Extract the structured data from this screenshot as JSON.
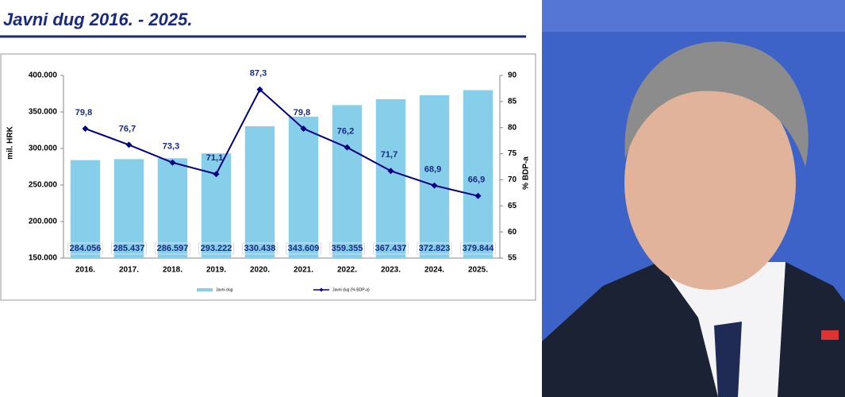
{
  "chart_data": {
    "type": "bar",
    "title": "Javni dug 2016. - 2025.",
    "ylabel": "mil. HRK",
    "y2label": "% BDP-a",
    "categories": [
      "2016.",
      "2017.",
      "2018.",
      "2019.",
      "2020.",
      "2021.",
      "2022.",
      "2023.",
      "2024.",
      "2025."
    ],
    "series": [
      {
        "name": "Javni dug",
        "color": "#87ceeb",
        "values": [
          284056,
          285437,
          286597,
          293222,
          330438,
          343609,
          359355,
          367437,
          372823,
          379844
        ],
        "value_labels": [
          "284.056",
          "285.437",
          "286.597",
          "293.222",
          "330.438",
          "343.609",
          "359.355",
          "367.437",
          "372.823",
          "379.844"
        ]
      },
      {
        "name": "Javni dug (% BDP-a)",
        "color": "#000080",
        "axis": "y2",
        "values": [
          79.8,
          76.7,
          73.3,
          71.1,
          87.3,
          79.8,
          76.2,
          71.7,
          68.9,
          66.9
        ],
        "value_labels": [
          "79,8",
          "76,7",
          "73,3",
          "71,1",
          "87,3",
          "79,8",
          "76,2",
          "71,7",
          "68,9",
          "66,9"
        ]
      }
    ],
    "ylim": [
      150000,
      400000
    ],
    "yticks": [
      {
        "value": 150000,
        "label": "150.000"
      },
      {
        "value": 200000,
        "label": "200.000"
      },
      {
        "value": 250000,
        "label": "250.000"
      },
      {
        "value": 300000,
        "label": "300.000"
      },
      {
        "value": 350000,
        "label": "350.000"
      },
      {
        "value": 400000,
        "label": "400.000"
      }
    ],
    "y2lim": [
      55,
      90
    ],
    "y2ticks": [
      55,
      60,
      65,
      70,
      75,
      80,
      85,
      90
    ],
    "grid": false,
    "legend": "bottom"
  }
}
